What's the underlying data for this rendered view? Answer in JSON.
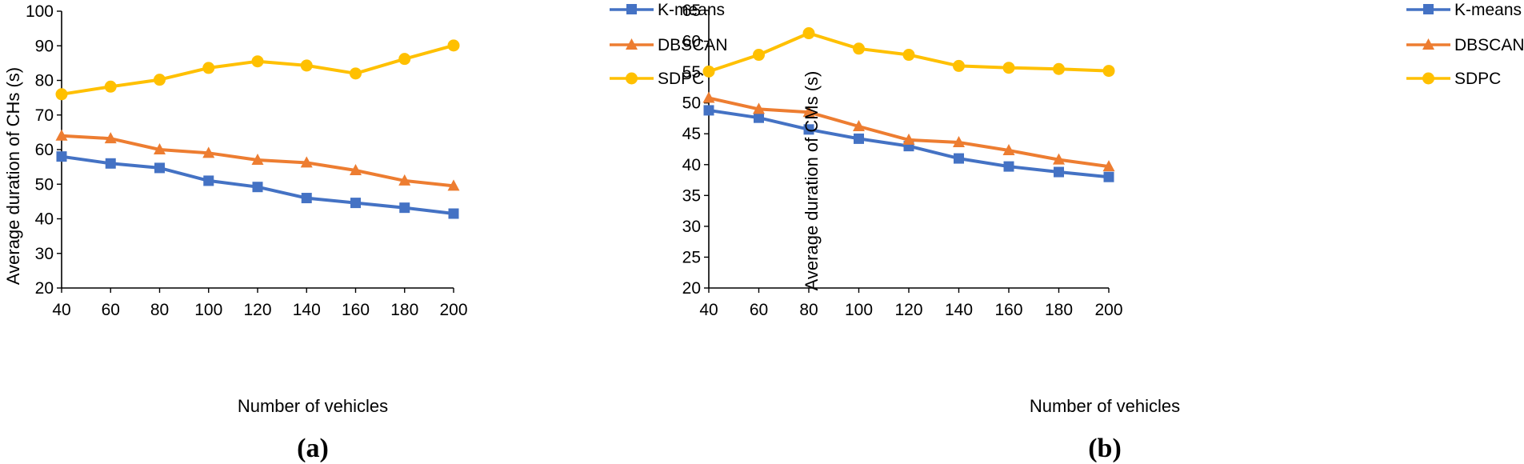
{
  "colors": {
    "kmeans": "#4472C4",
    "dbscan": "#ED7D31",
    "sdpc": "#FFC000",
    "axis": "#000000"
  },
  "chart_data": [
    {
      "type": "line",
      "panel_label": "(a)",
      "panel_letter": "a",
      "xlabel": "Number of vehicles",
      "ylabel": "Average duration of CHs (s)",
      "x": [
        40,
        60,
        80,
        100,
        120,
        140,
        160,
        180,
        200
      ],
      "ylim": [
        20,
        100
      ],
      "yticks": [
        20,
        30,
        40,
        50,
        60,
        70,
        80,
        90,
        100
      ],
      "legend_position": "top-right",
      "series": [
        {
          "name": "K-means",
          "key": "kmeans",
          "marker": "square",
          "values": [
            58,
            56,
            54.7,
            51,
            49.2,
            46,
            44.6,
            43.2,
            41.5
          ]
        },
        {
          "name": "DBSCAN",
          "key": "dbscan",
          "marker": "triangle",
          "values": [
            64,
            63.2,
            60,
            59,
            57,
            56.2,
            54,
            51,
            49.5
          ]
        },
        {
          "name": "SDPC",
          "key": "sdpc",
          "marker": "circle",
          "values": [
            76,
            78.2,
            80.2,
            83.6,
            85.5,
            84.3,
            82,
            86.2,
            90.1
          ]
        }
      ]
    },
    {
      "type": "line",
      "panel_label": "(b)",
      "panel_letter": "b",
      "xlabel": "Number of vehicles",
      "ylabel": "Average duration of CMs (s)",
      "x": [
        40,
        60,
        80,
        100,
        120,
        140,
        160,
        180,
        200
      ],
      "ylim": [
        20,
        65
      ],
      "yticks": [
        20,
        25,
        30,
        35,
        40,
        45,
        50,
        55,
        60,
        65
      ],
      "legend_position": "top-right",
      "series": [
        {
          "name": "K-means",
          "key": "kmeans",
          "marker": "square",
          "values": [
            48.8,
            47.6,
            45.7,
            44.2,
            43,
            41,
            39.7,
            38.8,
            38
          ]
        },
        {
          "name": "DBSCAN",
          "key": "dbscan",
          "marker": "triangle",
          "values": [
            50.8,
            49,
            48.5,
            46.2,
            44,
            43.6,
            42.3,
            40.8,
            39.7
          ]
        },
        {
          "name": "SDPC",
          "key": "sdpc",
          "marker": "circle",
          "values": [
            55.1,
            57.8,
            61.3,
            58.8,
            57.8,
            56,
            55.7,
            55.5,
            55.2
          ]
        }
      ]
    }
  ]
}
